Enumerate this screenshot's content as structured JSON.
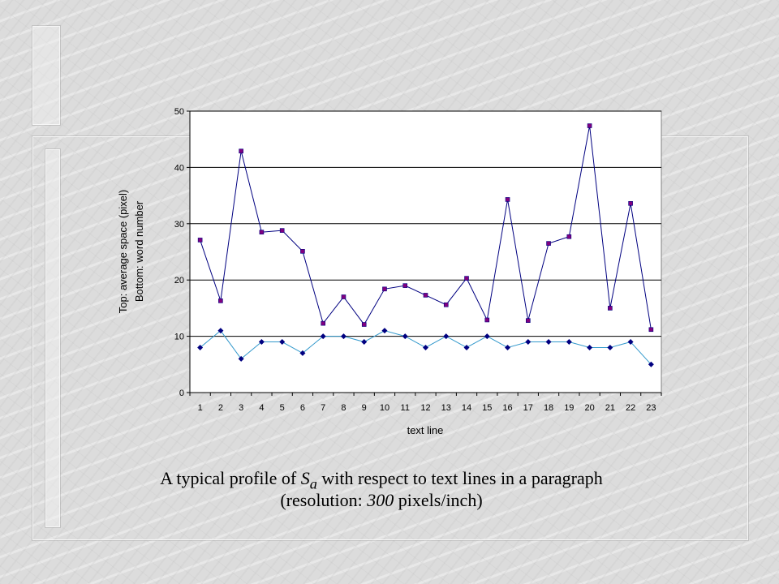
{
  "caption": {
    "line1_before": "A typical profile of ",
    "line1_symbol": "S",
    "line1_subscript": "a",
    "line1_after": " with respect to text lines in a paragraph",
    "line2_before": "(resolution: ",
    "line2_italic": "300",
    "line2_after": " pixels/inch)"
  },
  "chart_data": {
    "type": "line",
    "title": "",
    "xlabel": "text line",
    "ylabel_line1": "Top: average space (pixel)",
    "ylabel_line2": "Bottom: word number",
    "x": [
      1,
      2,
      3,
      4,
      5,
      6,
      7,
      8,
      9,
      10,
      11,
      12,
      13,
      14,
      15,
      16,
      17,
      18,
      19,
      20,
      21,
      22,
      23
    ],
    "x_tick_labels": [
      "1",
      "2",
      "3",
      "4",
      "5",
      "6",
      "7",
      "8",
      "9",
      "10",
      "11",
      "12",
      "13",
      "14",
      "15",
      "16",
      "17",
      "18",
      "19",
      "20",
      "21",
      "22",
      "23"
    ],
    "ylim": [
      0,
      50
    ],
    "y_ticks": [
      0,
      10,
      20,
      30,
      40,
      50
    ],
    "y_tick_labels": [
      "0",
      "10",
      "20",
      "30",
      "40",
      "50"
    ],
    "grid": true,
    "legend": "none",
    "series": [
      {
        "marker": "square",
        "line_color": "#000080",
        "marker_color": "#800080",
        "values": [
          27.1,
          16.3,
          42.9,
          28.5,
          28.8,
          25.1,
          12.3,
          17.0,
          12.1,
          18.4,
          19.0,
          17.3,
          15.6,
          20.3,
          12.9,
          34.3,
          12.8,
          26.5,
          27.7,
          47.4,
          15.0,
          33.6,
          11.2
        ]
      },
      {
        "marker": "diamond",
        "line_color": "#3399CC",
        "marker_color": "#000080",
        "values": [
          8,
          11,
          6,
          9,
          9,
          7,
          10,
          10,
          9,
          11,
          10,
          8,
          10,
          8,
          10,
          8,
          9,
          9,
          9,
          8,
          8,
          9,
          5
        ]
      }
    ]
  }
}
